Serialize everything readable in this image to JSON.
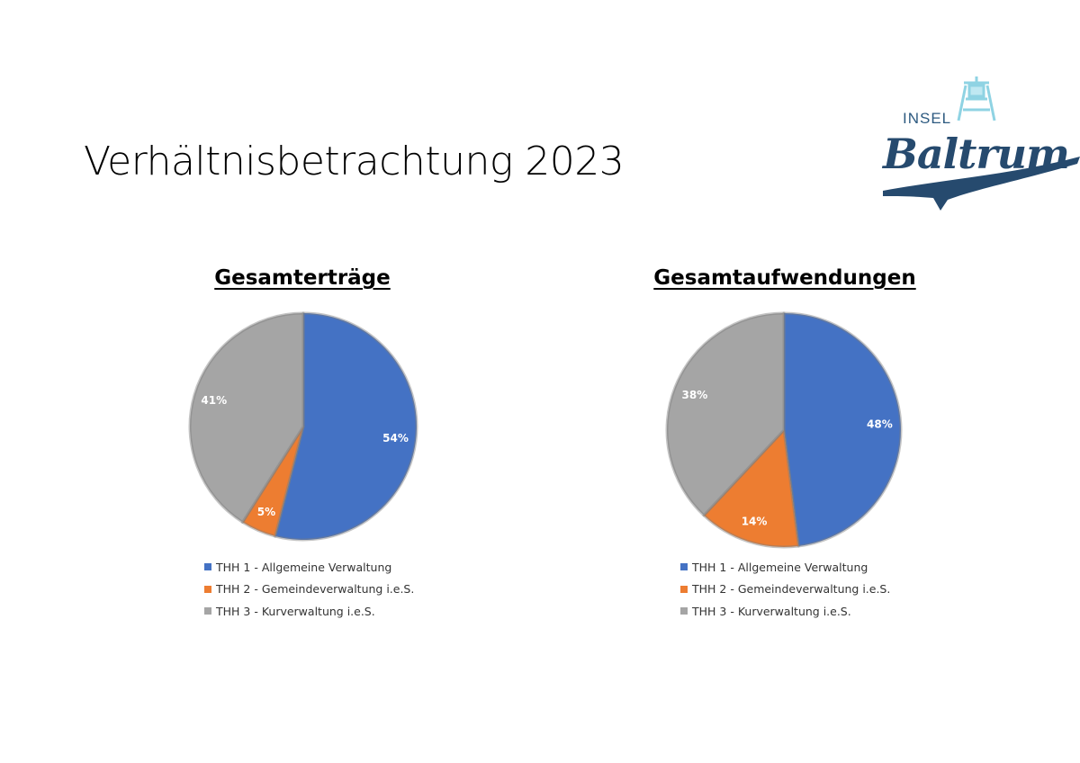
{
  "slide": {
    "title": "Verhältnisbetrachtung 2023"
  },
  "logo": {
    "top_text": "INSEL",
    "main_text": "Baltrum"
  },
  "chart_data": [
    {
      "type": "pie",
      "title": "Gesamterträge",
      "categories": [
        "THH 1 - Allgemeine Verwaltung",
        "THH 2 - Gemeindeverwaltung i.e.S.",
        "THH 3 - Kurverwaltung i.e.S."
      ],
      "values": [
        54,
        5,
        41
      ],
      "labels": [
        "54%",
        "5%",
        "41%"
      ],
      "colors": [
        "#4472C4",
        "#ED7D31",
        "#A5A5A5"
      ],
      "legend_position": "bottom"
    },
    {
      "type": "pie",
      "title": "Gesamtaufwendungen",
      "categories": [
        "THH 1 - Allgemeine Verwaltung",
        "THH 2 - Gemeindeverwaltung i.e.S.",
        "THH 3 - Kurverwaltung i.e.S."
      ],
      "values": [
        48,
        14,
        38
      ],
      "labels": [
        "48%",
        "14%",
        "38%"
      ],
      "colors": [
        "#4472C4",
        "#ED7D31",
        "#A5A5A5"
      ],
      "legend_position": "bottom"
    }
  ]
}
